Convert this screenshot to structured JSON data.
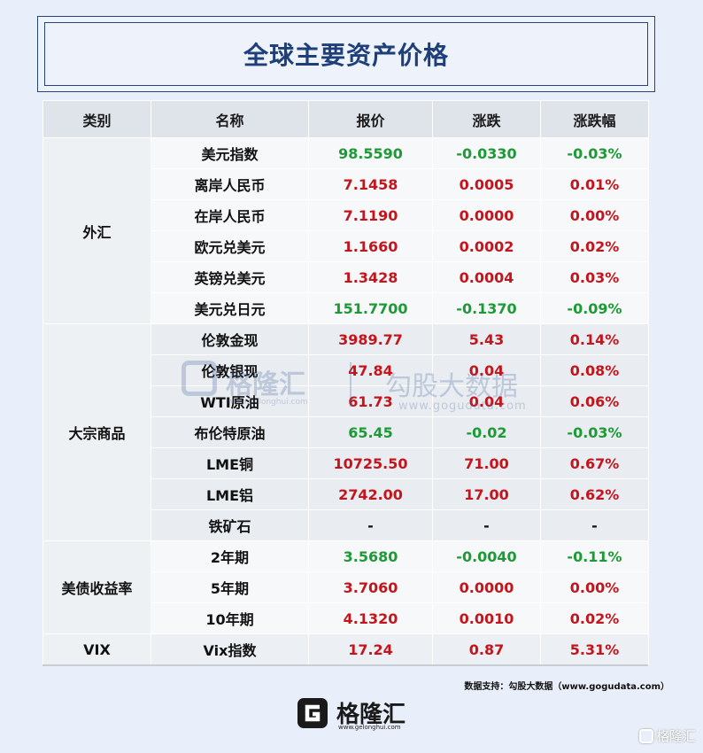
{
  "title": "全球主要资产价格",
  "headers": [
    "类别",
    "名称",
    "报价",
    "涨跌",
    "涨跌幅"
  ],
  "sections": [
    {
      "category": "外汇",
      "rows": [
        {
          "name": "美元指数",
          "price": "98.5590",
          "change": "-0.0330",
          "pct": "-0.03%",
          "dir": "down"
        },
        {
          "name": "离岸人民币",
          "price": "7.1458",
          "change": "0.0005",
          "pct": "0.01%",
          "dir": "up"
        },
        {
          "name": "在岸人民币",
          "price": "7.1190",
          "change": "0.0000",
          "pct": "0.00%",
          "dir": "flat"
        },
        {
          "name": "欧元兑美元",
          "price": "1.1660",
          "change": "0.0002",
          "pct": "0.02%",
          "dir": "up"
        },
        {
          "name": "英镑兑美元",
          "price": "1.3428",
          "change": "0.0004",
          "pct": "0.03%",
          "dir": "up"
        },
        {
          "name": "美元兑日元",
          "price": "151.7700",
          "change": "-0.1370",
          "pct": "-0.09%",
          "dir": "down"
        }
      ]
    },
    {
      "category": "大宗商品",
      "rows": [
        {
          "name": "伦敦金现",
          "price": "3989.77",
          "change": "5.43",
          "pct": "0.14%",
          "dir": "up"
        },
        {
          "name": "伦敦银现",
          "price": "47.84",
          "change": "0.04",
          "pct": "0.08%",
          "dir": "up"
        },
        {
          "name": "WTI原油",
          "price": "61.73",
          "change": "0.04",
          "pct": "0.06%",
          "dir": "up"
        },
        {
          "name": "布伦特原油",
          "price": "65.45",
          "change": "-0.02",
          "pct": "-0.03%",
          "dir": "down"
        },
        {
          "name": "LME铜",
          "price": "10725.50",
          "change": "71.00",
          "pct": "0.67%",
          "dir": "up"
        },
        {
          "name": "LME铝",
          "price": "2742.00",
          "change": "17.00",
          "pct": "0.62%",
          "dir": "up"
        },
        {
          "name": "铁矿石",
          "price": "-",
          "change": "-",
          "pct": "-",
          "dir": "nil"
        }
      ]
    },
    {
      "category": "美债收益率",
      "rows": [
        {
          "name": "2年期",
          "price": "3.5680",
          "change": "-0.0040",
          "pct": "-0.11%",
          "dir": "down"
        },
        {
          "name": "5年期",
          "price": "3.7060",
          "change": "0.0000",
          "pct": "0.00%",
          "dir": "flat"
        },
        {
          "name": "10年期",
          "price": "4.1320",
          "change": "0.0010",
          "pct": "0.02%",
          "dir": "up"
        }
      ]
    },
    {
      "category": "VIX",
      "rows": [
        {
          "name": "Vix指数",
          "price": "17.24",
          "change": "0.87",
          "pct": "5.31%",
          "dir": "up"
        }
      ]
    }
  ],
  "watermark": {
    "name": "格隆汇",
    "site": "www.gelonghui.com",
    "name2": "勾股大数据",
    "site2": "www.gogudata.com"
  },
  "source": "数据支持：勾股大数据（www.gogudata.com）",
  "logo": {
    "name": "格隆汇",
    "site": "www.gelonghui.com"
  },
  "corner_mark": "格隆汇",
  "colors": {
    "up": "#c4141c",
    "down": "#1d9a35",
    "title": "#1e3f7a"
  }
}
